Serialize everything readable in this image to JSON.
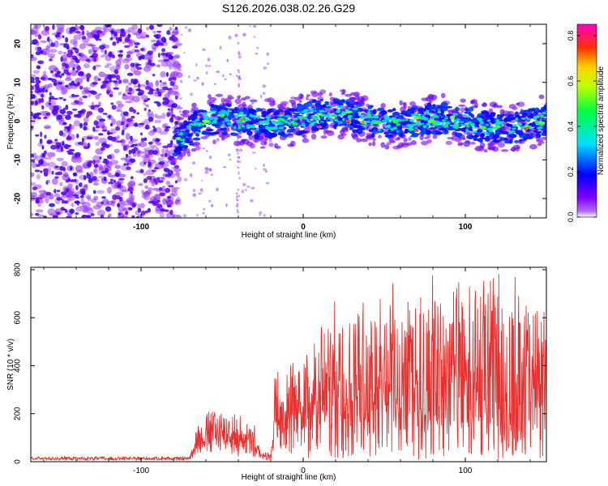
{
  "figure": {
    "title": "S126.2026.038.02.26.G29"
  },
  "chart_data": [
    {
      "type": "heatmap",
      "name": "spectrogram",
      "xlabel": "Height of straight line (km)",
      "ylabel": "Frequency (Hz)",
      "xlim": [
        -168,
        150
      ],
      "ylim": [
        -25,
        25
      ],
      "xticks": [
        -100,
        0,
        100
      ],
      "xtick_labels": [
        "-100",
        "0",
        "100"
      ],
      "yticks": [
        -20,
        -10,
        0,
        10,
        20
      ],
      "ytick_labels": [
        "-20",
        "-10",
        "0",
        "10",
        "20"
      ],
      "colorbar": {
        "label": "Normalized spectral amplitude",
        "range": [
          0,
          0.85
        ],
        "ticks": [
          0,
          0.2,
          0.4,
          0.6,
          0.8
        ],
        "tick_labels": [
          "0.0",
          "0.2",
          "0.4",
          "0.6",
          "0.8"
        ],
        "colormap": [
          "#ffffff",
          "#8000ff",
          "#0000ff",
          "#00ffff",
          "#00ff00",
          "#ffff00",
          "#ff8000",
          "#ff0000",
          "#ff00c0"
        ]
      },
      "regions": [
        {
          "x_range": [
            -168,
            -80
          ],
          "description_level": 0.1,
          "freq_spread": [
            -25,
            25
          ]
        },
        {
          "x_range": [
            -80,
            150
          ],
          "description_level": 0.3,
          "center_freq": 0,
          "half_width": 3
        }
      ]
    },
    {
      "type": "line",
      "name": "snr",
      "xlabel": "Height of straight line (km)",
      "ylabel": "SNR (10 * v/v)",
      "xlim": [
        -168,
        150
      ],
      "ylim": [
        0,
        810
      ],
      "xticks": [
        -100,
        0,
        100
      ],
      "xtick_labels": [
        "-100",
        "0",
        "100"
      ],
      "yticks": [
        0,
        200,
        400,
        600,
        800
      ],
      "ytick_labels": [
        "0",
        "200",
        "400",
        "600",
        "800"
      ],
      "color": "#e8302e",
      "envelope": [
        {
          "x": -168,
          "base": 15,
          "amp": 5
        },
        {
          "x": -70,
          "base": 15,
          "amp": 5
        },
        {
          "x": -66,
          "base": 60,
          "amp": 110
        },
        {
          "x": -55,
          "base": 90,
          "amp": 150
        },
        {
          "x": -42,
          "base": 70,
          "amp": 130
        },
        {
          "x": -30,
          "base": 40,
          "amp": 110
        },
        {
          "x": -26,
          "base": 20,
          "amp": 20
        },
        {
          "x": -20,
          "base": 20,
          "amp": 20
        },
        {
          "x": -17,
          "base": 120,
          "amp": 300
        },
        {
          "x": 0,
          "base": 160,
          "amp": 330
        },
        {
          "x": 20,
          "base": 200,
          "amp": 440
        },
        {
          "x": 50,
          "base": 170,
          "amp": 560
        },
        {
          "x": 90,
          "base": 150,
          "amp": 620
        },
        {
          "x": 130,
          "base": 120,
          "amp": 660
        },
        {
          "x": 150,
          "base": 130,
          "amp": 560
        }
      ]
    }
  ]
}
